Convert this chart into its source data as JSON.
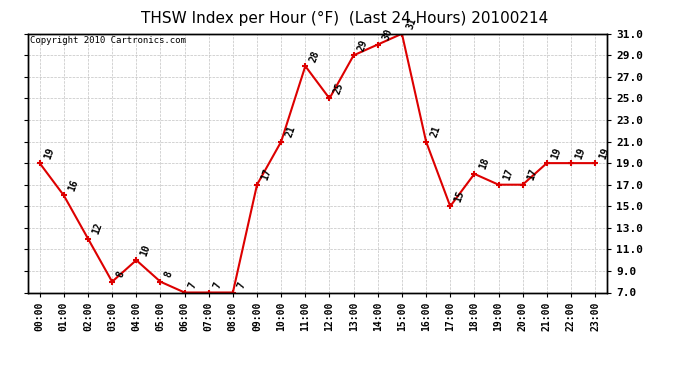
{
  "title": "THSW Index per Hour (°F)  (Last 24 Hours) 20100214",
  "copyright": "Copyright 2010 Cartronics.com",
  "hours": [
    0,
    1,
    2,
    3,
    4,
    5,
    6,
    7,
    8,
    9,
    10,
    11,
    12,
    13,
    14,
    15,
    16,
    17,
    18,
    19,
    20,
    21,
    22,
    23
  ],
  "values": [
    19,
    16,
    12,
    8,
    10,
    8,
    7,
    7,
    7,
    17,
    21,
    28,
    25,
    29,
    30,
    31,
    21,
    15,
    18,
    17,
    17,
    19,
    19,
    19
  ],
  "xlabels": [
    "00:00",
    "01:00",
    "02:00",
    "03:00",
    "04:00",
    "05:00",
    "06:00",
    "07:00",
    "08:00",
    "09:00",
    "10:00",
    "11:00",
    "12:00",
    "13:00",
    "14:00",
    "15:00",
    "16:00",
    "17:00",
    "18:00",
    "19:00",
    "20:00",
    "21:00",
    "22:00",
    "23:00"
  ],
  "ylim_min": 7.0,
  "ylim_max": 31.0,
  "yticks": [
    7.0,
    9.0,
    11.0,
    13.0,
    15.0,
    17.0,
    19.0,
    21.0,
    23.0,
    25.0,
    27.0,
    29.0,
    31.0
  ],
  "line_color": "#dd0000",
  "bg_color": "#ffffff",
  "grid_color": "#bbbbbb",
  "title_fontsize": 11,
  "tick_fontsize": 7,
  "copyright_fontsize": 6.5,
  "value_label_fontsize": 7
}
